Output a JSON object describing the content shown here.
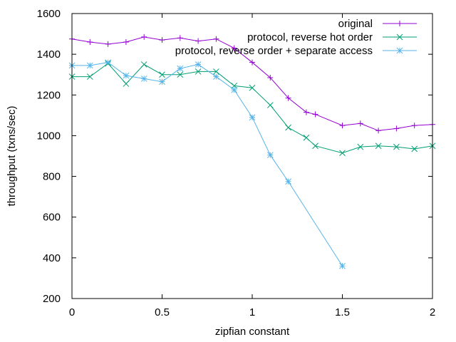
{
  "chart_data": {
    "type": "line",
    "title": "",
    "xlabel": "zipfian constant",
    "ylabel": "throughput (txns/sec)",
    "xlim": [
      0,
      2
    ],
    "ylim": [
      200,
      1600
    ],
    "x_ticks": [
      0,
      0.5,
      1,
      1.5,
      2
    ],
    "x_tick_labels": [
      "0",
      "0.5",
      "1",
      "1.5",
      "2"
    ],
    "y_ticks": [
      200,
      400,
      600,
      800,
      1000,
      1200,
      1400,
      1600
    ],
    "y_tick_labels": [
      "200",
      "400",
      "600",
      "800",
      "1000",
      "1200",
      "1400",
      "1600"
    ],
    "grid": false,
    "legend_position": "top-right",
    "series": [
      {
        "name": "original",
        "color": "#9400d3",
        "marker": "plus",
        "x": [
          0,
          0.1,
          0.2,
          0.3,
          0.4,
          0.5,
          0.6,
          0.7,
          0.8,
          0.9,
          1.0,
          1.1,
          1.2,
          1.3,
          1.35,
          1.5,
          1.6,
          1.7,
          1.8,
          1.9,
          2.0
        ],
        "y": [
          1475,
          1460,
          1450,
          1460,
          1485,
          1470,
          1480,
          1465,
          1475,
          1430,
          1360,
          1285,
          1185,
          1115,
          1105,
          1050,
          1060,
          1025,
          1035,
          1050,
          1055
        ]
      },
      {
        "name": "protocol, reverse hot order",
        "color": "#009e73",
        "marker": "cross",
        "x": [
          0,
          0.1,
          0.2,
          0.3,
          0.4,
          0.5,
          0.6,
          0.7,
          0.8,
          0.9,
          1.0,
          1.1,
          1.2,
          1.3,
          1.35,
          1.5,
          1.6,
          1.7,
          1.8,
          1.9,
          2.0
        ],
        "y": [
          1290,
          1290,
          1355,
          1255,
          1350,
          1300,
          1300,
          1315,
          1315,
          1245,
          1235,
          1150,
          1040,
          990,
          950,
          915,
          945,
          950,
          945,
          935,
          950
        ]
      },
      {
        "name": "protocol, reverse order + separate access",
        "color": "#56b4e9",
        "marker": "star",
        "x": [
          0,
          0.1,
          0.2,
          0.3,
          0.4,
          0.5,
          0.6,
          0.7,
          0.8,
          0.9,
          1.0,
          1.1,
          1.2,
          1.5
        ],
        "y": [
          1345,
          1345,
          1360,
          1295,
          1280,
          1265,
          1330,
          1350,
          1290,
          1225,
          1090,
          905,
          775,
          360
        ]
      }
    ]
  }
}
